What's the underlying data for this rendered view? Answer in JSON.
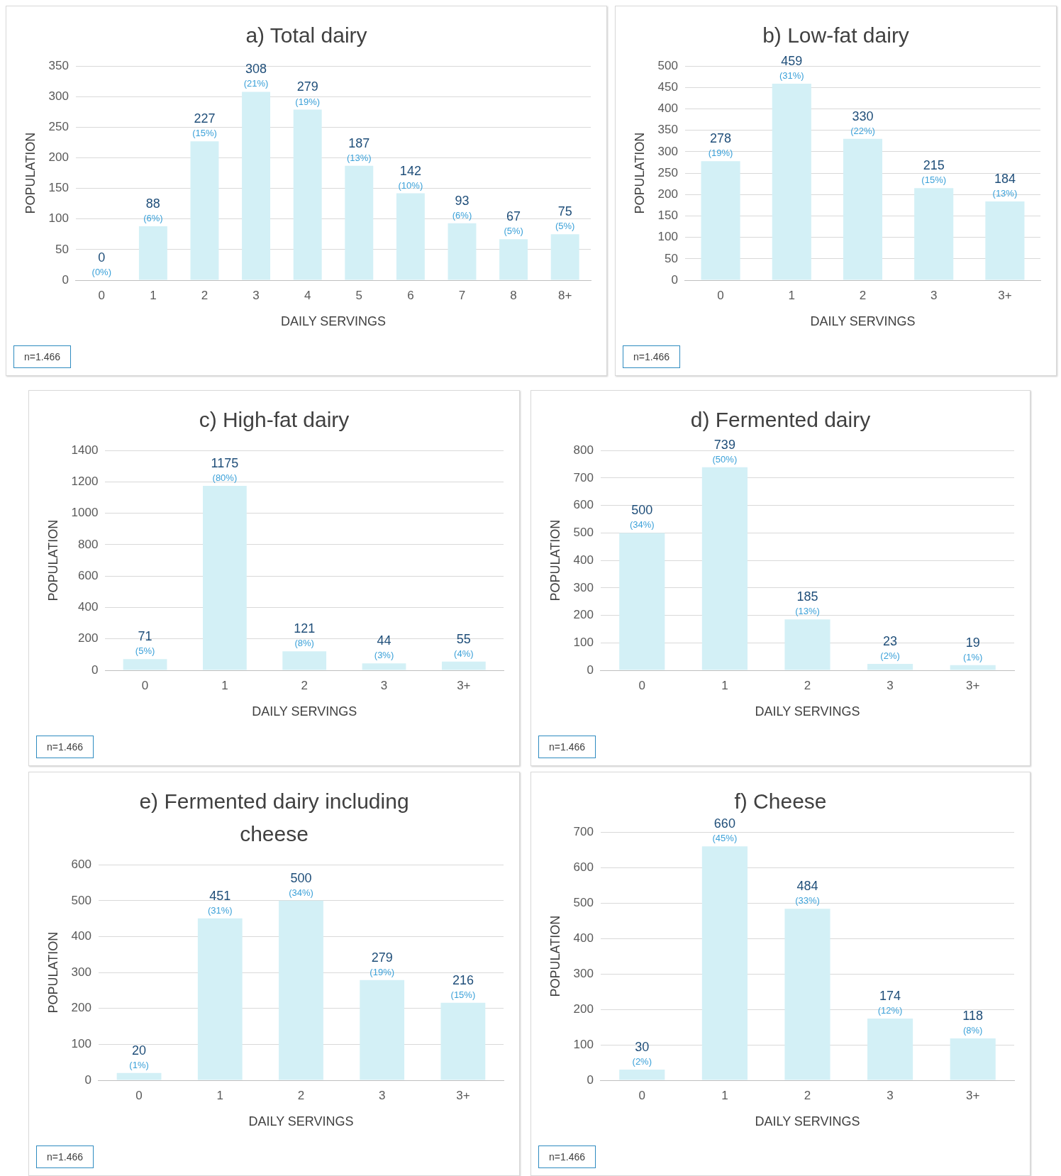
{
  "chart_data": [
    {
      "type": "bar",
      "title": "a) Total dairy",
      "xlabel": "DAILY SERVINGS",
      "ylabel": "POPULATION",
      "categories": [
        "0",
        "1",
        "2",
        "3",
        "4",
        "5",
        "6",
        "7",
        "8",
        "8+"
      ],
      "values": [
        0,
        88,
        227,
        308,
        279,
        187,
        142,
        93,
        67,
        75
      ],
      "color": "#d3f0f6",
      "ylim": [
        0,
        350
      ],
      "yticks": [
        0,
        50,
        100,
        150,
        200,
        250,
        300,
        350
      ],
      "grid": "y",
      "data_labels": true,
      "annotations": [
        {
          "text": "(0%)",
          "x": "0",
          "y": 0
        },
        {
          "text": "(6%)",
          "x": "1",
          "y": 88
        },
        {
          "text": "(15%)",
          "x": "2",
          "y": 227
        },
        {
          "text": "(21%)",
          "x": "3",
          "y": 308
        },
        {
          "text": "(19%)",
          "x": "4",
          "y": 279
        },
        {
          "text": "(13%)",
          "x": "5",
          "y": 187
        },
        {
          "text": "(10%)",
          "x": "6",
          "y": 142
        },
        {
          "text": "(6%)",
          "x": "7",
          "y": 93
        },
        {
          "text": "(5%)",
          "x": "8",
          "y": 67
        },
        {
          "text": "(5%)",
          "x": "8+",
          "y": 75
        },
        "n=1.466"
      ]
    },
    {
      "type": "bar",
      "title": "b) Low-fat dairy",
      "xlabel": "DAILY SERVINGS",
      "ylabel": "POPULATION",
      "categories": [
        "0",
        "1",
        "2",
        "3",
        "3+"
      ],
      "values": [
        278,
        459,
        330,
        215,
        184
      ],
      "color": "#d3f0f6",
      "ylim": [
        0,
        500
      ],
      "yticks": [
        0,
        50,
        100,
        150,
        200,
        250,
        300,
        350,
        400,
        450,
        500
      ],
      "grid": "y",
      "data_labels": true,
      "annotations": [
        {
          "text": "(19%)",
          "x": "0",
          "y": 278
        },
        {
          "text": "(31%)",
          "x": "1",
          "y": 459
        },
        {
          "text": "(22%)",
          "x": "2",
          "y": 330
        },
        {
          "text": "(15%)",
          "x": "3",
          "y": 215
        },
        {
          "text": "(13%)",
          "x": "3+",
          "y": 184
        },
        "n=1.466"
      ]
    },
    {
      "type": "bar",
      "title": "c) High-fat dairy",
      "xlabel": "DAILY SERVINGS",
      "ylabel": "POPULATION",
      "categories": [
        "0",
        "1",
        "2",
        "3",
        "3+"
      ],
      "values": [
        71,
        1175,
        121,
        44,
        55
      ],
      "color": "#d3f0f6",
      "ylim": [
        0,
        1400
      ],
      "yticks": [
        0,
        200,
        400,
        600,
        800,
        1000,
        1200,
        1400
      ],
      "grid": "y",
      "data_labels": true,
      "annotations": [
        {
          "text": "(5%)",
          "x": "0",
          "y": 71
        },
        {
          "text": "(80%)",
          "x": "1",
          "y": 1175
        },
        {
          "text": "(8%)",
          "x": "2",
          "y": 121
        },
        {
          "text": "(3%)",
          "x": "3",
          "y": 44
        },
        {
          "text": "(4%)",
          "x": "3+",
          "y": 55
        },
        "n=1.466"
      ]
    },
    {
      "type": "bar",
      "title": "d) Fermented dairy",
      "xlabel": "DAILY SERVINGS",
      "ylabel": "POPULATION",
      "categories": [
        "0",
        "1",
        "2",
        "3",
        "3+"
      ],
      "values": [
        500,
        739,
        185,
        23,
        19
      ],
      "color": "#d3f0f6",
      "ylim": [
        0,
        800
      ],
      "yticks": [
        0,
        100,
        200,
        300,
        400,
        500,
        600,
        700,
        800
      ],
      "grid": "y",
      "data_labels": true,
      "annotations": [
        {
          "text": "(34%)",
          "x": "0",
          "y": 500
        },
        {
          "text": "(50%)",
          "x": "1",
          "y": 739
        },
        {
          "text": "(13%)",
          "x": "2",
          "y": 185
        },
        {
          "text": "(2%)",
          "x": "3",
          "y": 23
        },
        {
          "text": "(1%)",
          "x": "3+",
          "y": 19
        },
        "n=1.466"
      ]
    },
    {
      "type": "bar",
      "title": "e) Fermented dairy including cheese",
      "xlabel": "DAILY SERVINGS",
      "ylabel": "POPULATION",
      "categories": [
        "0",
        "1",
        "2",
        "3",
        "3+"
      ],
      "values": [
        20,
        451,
        500,
        279,
        216
      ],
      "color": "#d3f0f6",
      "ylim": [
        0,
        600
      ],
      "yticks": [
        0,
        100,
        200,
        300,
        400,
        500,
        600
      ],
      "grid": "y",
      "data_labels": true,
      "annotations": [
        {
          "text": "(1%)",
          "x": "0",
          "y": 20
        },
        {
          "text": "(31%)",
          "x": "1",
          "y": 451
        },
        {
          "text": "(34%)",
          "x": "2",
          "y": 500
        },
        {
          "text": "(19%)",
          "x": "3",
          "y": 279
        },
        {
          "text": "(15%)",
          "x": "3+",
          "y": 216
        },
        "n=1.466"
      ]
    },
    {
      "type": "bar",
      "title": "f) Cheese",
      "xlabel": "DAILY SERVINGS",
      "ylabel": "POPULATION",
      "categories": [
        "0",
        "1",
        "2",
        "3",
        "3+"
      ],
      "values": [
        30,
        660,
        484,
        174,
        118
      ],
      "color": "#d3f0f6",
      "ylim": [
        0,
        700
      ],
      "yticks": [
        0,
        100,
        200,
        300,
        400,
        500,
        600,
        700
      ],
      "grid": "y",
      "data_labels": true,
      "annotations": [
        {
          "text": "(2%)",
          "x": "0",
          "y": 30
        },
        {
          "text": "(45%)",
          "x": "1",
          "y": 660
        },
        {
          "text": "(33%)",
          "x": "2",
          "y": 484
        },
        {
          "text": "(12%)",
          "x": "3",
          "y": 174
        },
        {
          "text": "(8%)",
          "x": "3+",
          "y": 118
        },
        "n=1.466"
      ]
    }
  ]
}
